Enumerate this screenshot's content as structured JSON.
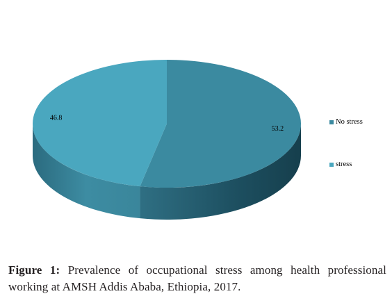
{
  "chart_data": {
    "type": "pie",
    "title": "",
    "three_d": true,
    "slices": [
      {
        "label": "No stress",
        "value": 53.2,
        "color": "#3b8aa0",
        "side_dark": "#1a4a5a",
        "side_light": "#2f7589"
      },
      {
        "label": "stress",
        "value": 46.8,
        "color": "#4aa7bf",
        "side_dark": "#2a6e82",
        "side_light": "#4597ad"
      }
    ],
    "legend": {
      "placement": "right"
    }
  },
  "caption": {
    "prefix": "Figure 1:",
    "text": " Prevalence of occupational stress among health professional working at AMSH Addis Ababa, Ethiopia, 2017."
  }
}
